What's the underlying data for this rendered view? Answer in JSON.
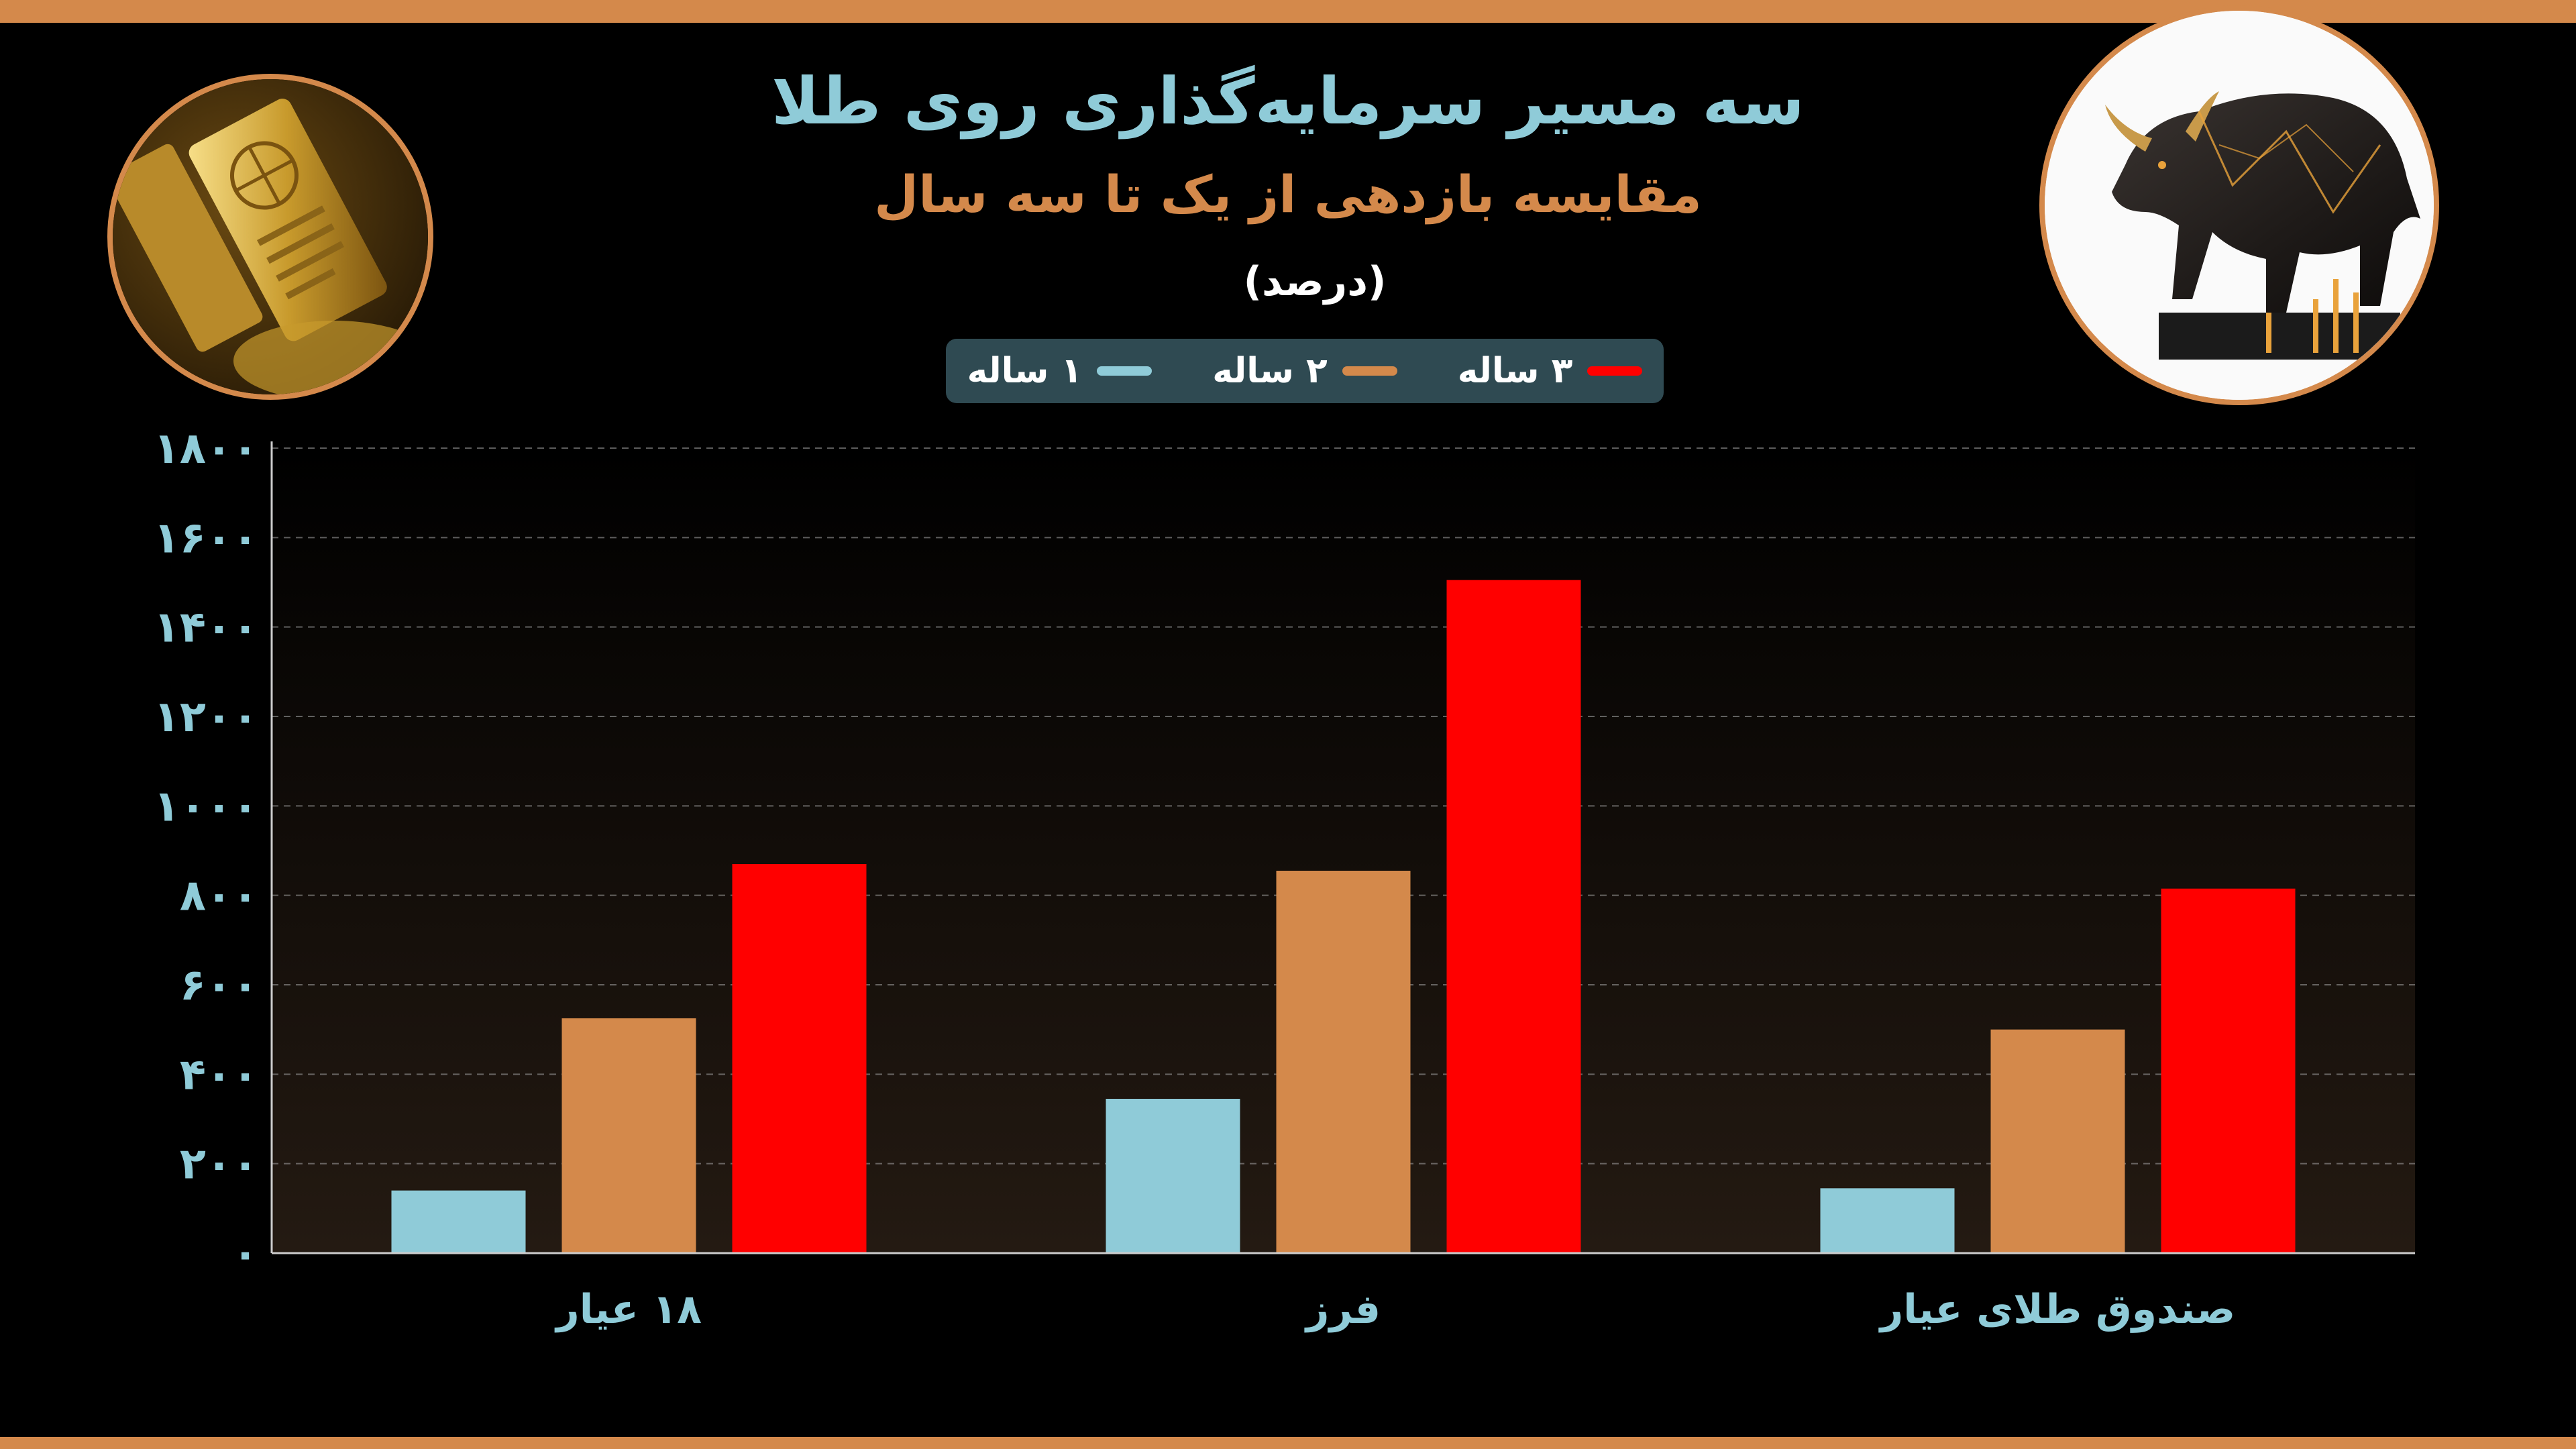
{
  "colors": {
    "frame": "#d4894b",
    "title": "#8fcbd8",
    "subtitle": "#d4894b",
    "axis_text": "#8fcbd8",
    "one_year": "#8fcbd8",
    "two_year": "#d4894b",
    "three_year": "#ff0000"
  },
  "header": {
    "title": "سه مسیر سرمایه‌گذاری روی طلا",
    "subtitle": "مقایسه بازدهی از یک تا سه سال",
    "unit": "(درصد)"
  },
  "legend": {
    "items": [
      {
        "label": "۳ ساله",
        "color": "#ff0000"
      },
      {
        "label": "۲ ساله",
        "color": "#d4894b"
      },
      {
        "label": "۱ ساله",
        "color": "#8fcbd8"
      }
    ]
  },
  "images": {
    "left": "gold-bar-photo",
    "right": "golden-bull-photo"
  },
  "chart_data": {
    "type": "bar",
    "title": "سه مسیر سرمایه‌گذاری روی طلا",
    "subtitle": "مقایسه بازدهی از یک تا سه سال",
    "unit": "(درصد)",
    "categories": [
      "۱۸ عیار",
      "فرز",
      "صندوق طلای عیار"
    ],
    "series": [
      {
        "name": "۱ ساله",
        "color": "#8fcbd8",
        "values": [
          140,
          345,
          145
        ]
      },
      {
        "name": "۲ ساله",
        "color": "#d4894b",
        "values": [
          525,
          855,
          500
        ]
      },
      {
        "name": "۳ ساله",
        "color": "#ff0000",
        "values": [
          870,
          1505,
          815
        ]
      }
    ],
    "ylim": [
      0,
      1800
    ],
    "yticks": [
      0,
      200,
      400,
      600,
      800,
      1000,
      1200,
      1400,
      1600,
      1800
    ],
    "ytick_labels": [
      "۰",
      "۲۰۰",
      "۴۰۰",
      "۶۰۰",
      "۸۰۰",
      "۱۰۰۰",
      "۱۲۰۰",
      "۱۴۰۰",
      "۱۶۰۰",
      "۱۸۰۰"
    ],
    "grid": true,
    "legend_position": "top-center"
  }
}
